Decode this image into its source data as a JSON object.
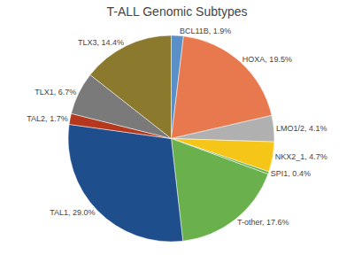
{
  "chart_data": {
    "type": "pie",
    "title": "T-ALL Genomic Subtypes",
    "categories": [
      "BCL11B, 1.9%",
      "HOXA, 19.5%",
      "LMO1/2, 4.1%",
      "NKX2_1, 4.7%",
      "SPI1, 0.4%",
      "T-other, 17.6%",
      "TAL1, 29.0%",
      "TAL2, 1.7%",
      "TLX1, 6.7%",
      "TLX3, 14.4%"
    ],
    "values": [
      1.9,
      19.5,
      4.1,
      4.7,
      0.4,
      17.6,
      29.0,
      1.7,
      6.7,
      14.4
    ],
    "colors": [
      "#5b8fc7",
      "#e8784d",
      "#b0b0b0",
      "#f5c518",
      "#6ab04c",
      "#6ab04c",
      "#1f4e8c",
      "#b5381e",
      "#7a7a7a",
      "#8b7a2e"
    ]
  }
}
